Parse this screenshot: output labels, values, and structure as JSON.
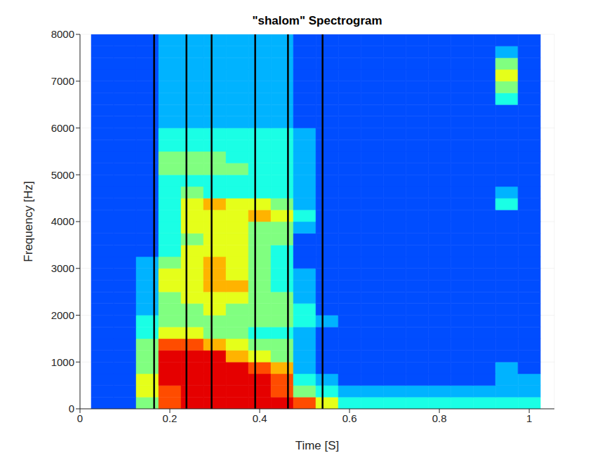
{
  "chart_data": {
    "type": "heatmap",
    "title": "\"shalom\" Spectrogram",
    "x_label": "Time [S]",
    "y_label": "Frequency [Hz]",
    "xlim": [
      0,
      1.056
    ],
    "xticks": [
      0,
      0.2,
      0.4,
      0.6,
      0.8,
      1
    ],
    "ylim": [
      0,
      8000
    ],
    "yticks": [
      0,
      1000,
      2000,
      3000,
      4000,
      5000,
      6000,
      7000,
      8000
    ],
    "grid": true,
    "zlim": [
      0,
      10
    ],
    "vlines": [
      0.165,
      0.237,
      0.293,
      0.39,
      0.463,
      0.54
    ],
    "x_edges": [
      0.025,
      0.075,
      0.125,
      0.175,
      0.225,
      0.275,
      0.325,
      0.375,
      0.425,
      0.475,
      0.525,
      0.575,
      0.625,
      0.675,
      0.725,
      0.775,
      0.825,
      0.875,
      0.925,
      0.975,
      1.025
    ],
    "y_edges": [
      0,
      250,
      500,
      750,
      1000,
      1250,
      1500,
      1750,
      2000,
      2250,
      2500,
      2750,
      3000,
      3250,
      3500,
      3750,
      4000,
      4250,
      4500,
      4750,
      5000,
      5250,
      5500,
      5750,
      6000,
      6250,
      6500,
      6750,
      7000,
      7250,
      7500,
      7750,
      8000
    ],
    "cells": [
      [
        2,
        2,
        5,
        8,
        9,
        9,
        9,
        9,
        9,
        8,
        6,
        4,
        4,
        4,
        4,
        4,
        4,
        4,
        4,
        4
      ],
      [
        2,
        2,
        6,
        8,
        9,
        9,
        9,
        9,
        8,
        5,
        4,
        3,
        3,
        3,
        3,
        3,
        3,
        3,
        3,
        3
      ],
      [
        2,
        2,
        6,
        9,
        9,
        9,
        9,
        9,
        8,
        4,
        3,
        2,
        2,
        2,
        2,
        2,
        2,
        2,
        3,
        3
      ],
      [
        2,
        2,
        5,
        9,
        9,
        9,
        9,
        8,
        7,
        3,
        2,
        2,
        2,
        2,
        2,
        2,
        2,
        2,
        3,
        2
      ],
      [
        2,
        2,
        5,
        9,
        9,
        9,
        7,
        6,
        5,
        3,
        2,
        2,
        2,
        2,
        2,
        2,
        2,
        2,
        2,
        2
      ],
      [
        2,
        2,
        5,
        8,
        8,
        7,
        6,
        5,
        5,
        3,
        2,
        2,
        2,
        2,
        2,
        2,
        2,
        2,
        2,
        2
      ],
      [
        2,
        2,
        4,
        6,
        6,
        5,
        5,
        4,
        4,
        3,
        2,
        2,
        2,
        2,
        2,
        2,
        2,
        2,
        2,
        2
      ],
      [
        2,
        2,
        4,
        5,
        5,
        5,
        5,
        5,
        5,
        4,
        3,
        2,
        2,
        2,
        2,
        2,
        2,
        2,
        2,
        2
      ],
      [
        2,
        2,
        3,
        5,
        5,
        6,
        5,
        5,
        5,
        4,
        2,
        2,
        2,
        2,
        2,
        2,
        2,
        2,
        2,
        2
      ],
      [
        2,
        2,
        3,
        5,
        6,
        6,
        6,
        5,
        5,
        3,
        2,
        2,
        2,
        2,
        2,
        2,
        2,
        2,
        2,
        2
      ],
      [
        2,
        2,
        3,
        6,
        6,
        7,
        7,
        5,
        4,
        3,
        2,
        2,
        2,
        2,
        2,
        2,
        2,
        2,
        2,
        2
      ],
      [
        2,
        2,
        3,
        6,
        6,
        7,
        6,
        5,
        4,
        3,
        2,
        2,
        2,
        2,
        2,
        2,
        2,
        2,
        2,
        2
      ],
      [
        2,
        2,
        3,
        5,
        6,
        7,
        6,
        5,
        4,
        2,
        2,
        2,
        2,
        2,
        2,
        2,
        2,
        2,
        2,
        2
      ],
      [
        2,
        2,
        2,
        4,
        6,
        6,
        6,
        5,
        4,
        2,
        2,
        2,
        2,
        2,
        2,
        2,
        2,
        2,
        2,
        2
      ],
      [
        2,
        2,
        2,
        4,
        5,
        6,
        6,
        5,
        5,
        2,
        2,
        2,
        2,
        2,
        2,
        2,
        2,
        2,
        2,
        2
      ],
      [
        2,
        2,
        2,
        4,
        6,
        6,
        6,
        5,
        5,
        3,
        2,
        2,
        2,
        2,
        2,
        2,
        2,
        2,
        2,
        2
      ],
      [
        2,
        2,
        2,
        4,
        6,
        6,
        6,
        7,
        6,
        4,
        2,
        2,
        2,
        2,
        2,
        2,
        2,
        2,
        2,
        2
      ],
      [
        2,
        2,
        2,
        4,
        6,
        7,
        6,
        6,
        5,
        3,
        2,
        2,
        2,
        2,
        2,
        2,
        2,
        2,
        4,
        2
      ],
      [
        2,
        2,
        2,
        4,
        5,
        4,
        4,
        4,
        4,
        3,
        2,
        2,
        2,
        2,
        2,
        2,
        2,
        2,
        3,
        2
      ],
      [
        2,
        2,
        2,
        4,
        4,
        4,
        4,
        4,
        4,
        3,
        2,
        2,
        2,
        2,
        2,
        2,
        2,
        2,
        2,
        2
      ],
      [
        2,
        2,
        2,
        5,
        5,
        5,
        5,
        4,
        4,
        3,
        2,
        2,
        2,
        2,
        2,
        2,
        2,
        2,
        2,
        2
      ],
      [
        2,
        2,
        2,
        5,
        5,
        5,
        4,
        4,
        4,
        3,
        2,
        2,
        2,
        2,
        2,
        2,
        2,
        2,
        2,
        2
      ],
      [
        2,
        2,
        2,
        4,
        4,
        4,
        4,
        4,
        4,
        3,
        2,
        2,
        2,
        2,
        2,
        2,
        2,
        2,
        2,
        2
      ],
      [
        2,
        2,
        2,
        4,
        4,
        4,
        4,
        4,
        4,
        3,
        2,
        2,
        2,
        2,
        2,
        2,
        2,
        2,
        2,
        2
      ],
      [
        2,
        2,
        2,
        3,
        3,
        3,
        3,
        3,
        3,
        2,
        2,
        2,
        2,
        2,
        2,
        2,
        2,
        2,
        2,
        2
      ],
      [
        2,
        2,
        2,
        3,
        3,
        3,
        3,
        3,
        3,
        2,
        2,
        2,
        2,
        2,
        2,
        2,
        2,
        2,
        2,
        2
      ],
      [
        2,
        2,
        2,
        3,
        3,
        3,
        3,
        3,
        3,
        2,
        2,
        2,
        2,
        2,
        2,
        2,
        2,
        2,
        4,
        2
      ],
      [
        2,
        2,
        2,
        3,
        3,
        3,
        3,
        3,
        3,
        2,
        2,
        2,
        2,
        2,
        2,
        2,
        2,
        2,
        5,
        2
      ],
      [
        2,
        2,
        2,
        3,
        3,
        3,
        3,
        3,
        3,
        2,
        2,
        2,
        2,
        2,
        2,
        2,
        2,
        2,
        6,
        2
      ],
      [
        2,
        2,
        2,
        3,
        3,
        3,
        3,
        3,
        3,
        2,
        2,
        2,
        2,
        2,
        2,
        2,
        2,
        2,
        5,
        2
      ],
      [
        2,
        2,
        2,
        3,
        3,
        3,
        3,
        3,
        3,
        2,
        2,
        2,
        2,
        2,
        2,
        2,
        2,
        2,
        3,
        2
      ],
      [
        2,
        2,
        2,
        3,
        3,
        3,
        3,
        3,
        3,
        2,
        2,
        2,
        2,
        2,
        2,
        2,
        2,
        2,
        2,
        2
      ]
    ]
  }
}
